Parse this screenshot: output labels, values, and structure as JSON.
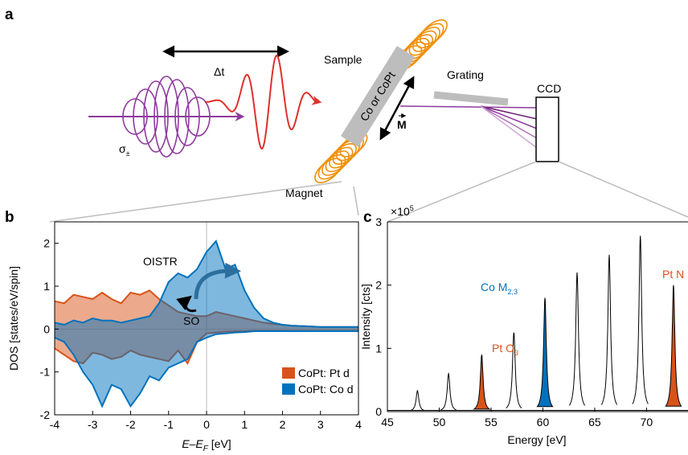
{
  "diagram": {
    "panel_label": "a",
    "delta_t": "Δt",
    "sigma": "σ",
    "sigma_sub": "±",
    "sample": "Sample",
    "grating": "Grating",
    "ccd": "CCD",
    "film": "Co or CoPt",
    "magnetization": "M",
    "magnet": "Magnet"
  },
  "chart_data": [
    {
      "type": "area",
      "panel_label": "b",
      "ylabel": "DOS [states/eV/spin]",
      "xlabel": [
        "E–E",
        "F",
        " [eV]"
      ],
      "x": [
        -4,
        -3.75,
        -3.5,
        -3.25,
        -3,
        -2.75,
        -2.5,
        -2.25,
        -2,
        -1.75,
        -1.5,
        -1.25,
        -1,
        -0.75,
        -0.5,
        -0.25,
        0,
        0.25,
        0.5,
        0.75,
        1,
        1.25,
        1.5,
        1.75,
        2,
        2.25,
        2.5,
        2.75,
        3,
        3.25,
        3.5,
        3.75,
        4
      ],
      "series": [
        {
          "name": "CoPt: Pt d",
          "color": "#d95319",
          "values": [
            0.65,
            0.6,
            0.8,
            0.75,
            0.7,
            0.85,
            0.7,
            0.6,
            0.85,
            0.8,
            0.9,
            0.7,
            0.55,
            0.4,
            0.35,
            0.3,
            0.3,
            0.4,
            0.35,
            0.3,
            0.25,
            0.2,
            0.15,
            0.12,
            0.1,
            0.08,
            0.07,
            0.06,
            0.05,
            0.05,
            0.05,
            0.05,
            0.05
          ],
          "values_minority": [
            -0.45,
            -0.6,
            -0.75,
            -0.8,
            -0.55,
            -0.6,
            -0.7,
            -0.65,
            -0.5,
            -0.6,
            -0.65,
            -0.7,
            -0.75,
            -0.5,
            -0.8,
            -0.3,
            -0.1,
            -0.08,
            -0.06,
            -0.05,
            -0.05,
            -0.04,
            -0.04,
            -0.04,
            -0.04,
            -0.04,
            -0.04,
            -0.04,
            -0.04,
            -0.04,
            -0.04,
            -0.04,
            -0.04
          ]
        },
        {
          "name": "CoPt: Co d",
          "color": "#0072bd",
          "values": [
            0.15,
            0.1,
            0.2,
            0.15,
            0.25,
            0.2,
            0.2,
            0.15,
            0.2,
            0.25,
            0.3,
            0.6,
            1.1,
            1.3,
            1.2,
            1.4,
            1.8,
            2.05,
            1.4,
            1.5,
            0.9,
            0.5,
            0.25,
            0.15,
            0.1,
            0.08,
            0.07,
            0.06,
            0.05,
            0.05,
            0.05,
            0.05,
            0.05
          ],
          "values_minority": [
            -0.2,
            -0.3,
            -0.6,
            -1.0,
            -1.3,
            -1.8,
            -1.3,
            -1.4,
            -1.8,
            -1.5,
            -1.1,
            -1.2,
            -0.9,
            -0.8,
            -0.7,
            -0.3,
            -0.2,
            -0.12,
            -0.1,
            -0.08,
            -0.07,
            -0.05,
            -0.05,
            -0.05,
            -0.05,
            -0.05,
            -0.05,
            -0.05,
            -0.05,
            -0.05,
            -0.05,
            -0.05,
            -0.05
          ]
        }
      ],
      "xlim": [
        -4,
        4
      ],
      "ylim": [
        -2,
        2.5
      ],
      "xticks": [
        -4,
        -3,
        -2,
        -1,
        0,
        1,
        2,
        3,
        4
      ],
      "yticks": [
        -2,
        -1,
        0,
        1,
        2
      ],
      "legend": "lower right",
      "annotations": {
        "oistr": "OISTR",
        "so": "SO"
      }
    },
    {
      "type": "peaks",
      "panel_label": "c",
      "ylabel": "Intensity [cts]",
      "xlabel": "Energy [eV]",
      "y_multiplier": [
        "×10",
        "5"
      ],
      "x": [
        47.9,
        50.9,
        54.1,
        57.2,
        60.2,
        63.3,
        66.4,
        69.4,
        72.6
      ],
      "values": [
        0.33,
        0.6,
        0.9,
        1.25,
        1.8,
        2.2,
        2.48,
        2.78,
        2.0
      ],
      "fill_colors": [
        null,
        null,
        "#d95319",
        null,
        "#0072bd",
        null,
        null,
        null,
        "#d95319"
      ],
      "xlim": [
        45,
        74
      ],
      "ylim": [
        0,
        3
      ],
      "xticks": [
        45,
        50,
        55,
        60,
        65,
        70
      ],
      "yticks": [
        0,
        1,
        2,
        3
      ],
      "annotations": [
        {
          "text": "Pt O",
          "sub": "3",
          "color": "#d95319"
        },
        {
          "text": "Co M",
          "sub": "2,3",
          "color": "#0072bd"
        },
        {
          "text": "Pt N",
          "sub": "",
          "color": "#d95319"
        }
      ]
    }
  ]
}
